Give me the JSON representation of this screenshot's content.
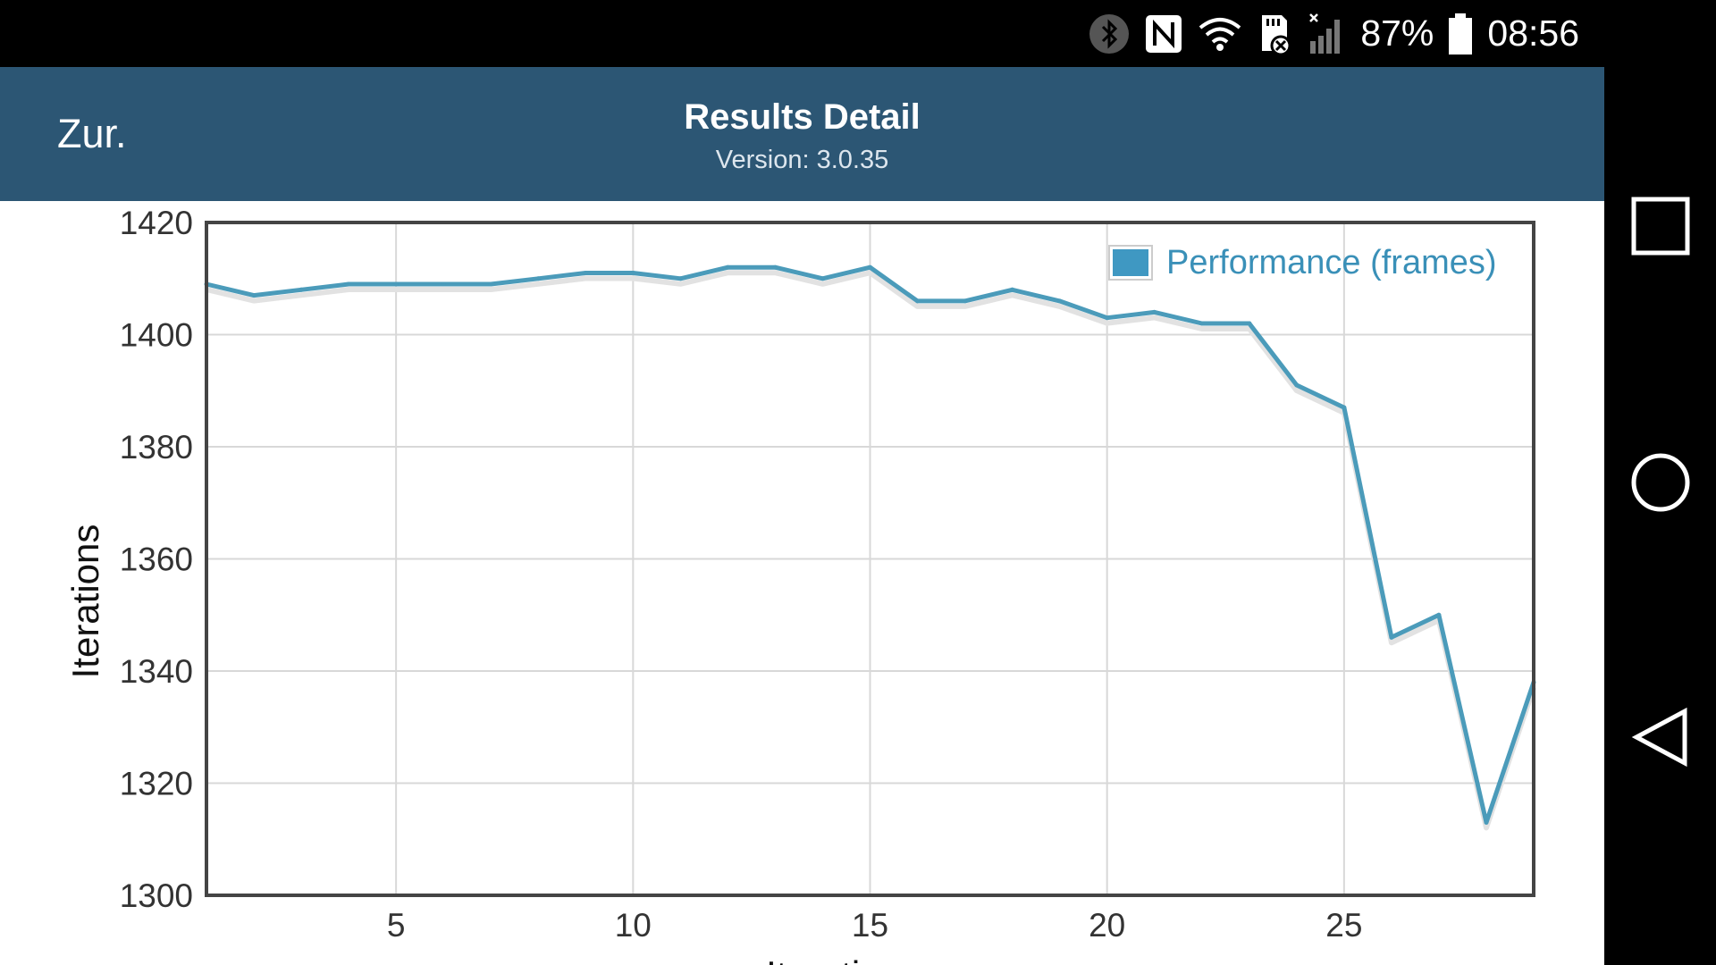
{
  "status_bar": {
    "battery": "87%",
    "time": "08:56",
    "icons": [
      "bluetooth-icon",
      "nfc-icon",
      "wifi-icon",
      "sd-card-icon",
      "signal-icon",
      "battery-icon"
    ]
  },
  "app_bar": {
    "back_label": "Zur.",
    "title": "Results Detail",
    "subtitle": "Version: 3.0.35"
  },
  "nav_bar": {
    "icons": [
      "recents-square-icon",
      "home-circle-icon",
      "back-triangle-icon"
    ]
  },
  "colors": {
    "app_bar": "#2c5674",
    "series_line": "#4b9bba",
    "legend_swatch": "#3f98c2",
    "legend_text": "#3a90b8"
  },
  "chart_data": {
    "type": "line",
    "ylabel": "Iterations",
    "xlabel": "Iterations",
    "xlim": [
      1,
      29
    ],
    "ylim": [
      1300,
      1420
    ],
    "x_ticks": [
      5,
      10,
      15,
      20,
      25
    ],
    "y_ticks": [
      1300,
      1320,
      1340,
      1360,
      1380,
      1400,
      1420
    ],
    "grid": true,
    "legend": "top-right",
    "series": [
      {
        "name": "Performance (frames)",
        "x": [
          1,
          2,
          3,
          4,
          5,
          6,
          7,
          8,
          9,
          10,
          11,
          12,
          13,
          14,
          15,
          16,
          17,
          18,
          19,
          20,
          21,
          22,
          23,
          24,
          25,
          26,
          27,
          28,
          29
        ],
        "values": [
          1409,
          1407,
          1408,
          1409,
          1409,
          1409,
          1409,
          1410,
          1411,
          1411,
          1410,
          1412,
          1412,
          1410,
          1412,
          1406,
          1406,
          1408,
          1406,
          1403,
          1404,
          1402,
          1402,
          1391,
          1387,
          1346,
          1350,
          1313,
          1338
        ]
      }
    ]
  }
}
